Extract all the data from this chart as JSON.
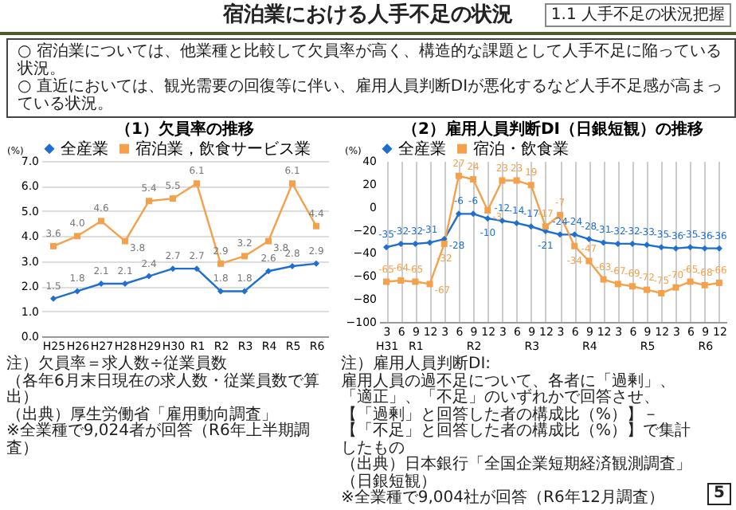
{
  "chart_data": [
    {
      "type": "other",
      "title": "宿泊業における人手不足の状況",
      "annotations": [
        "1.1 人手不足の状況把握",
        "○ 宿泊業については、他業種と比較して欠員率が高く、構造的な課題として人手不足に陥っている状況。",
        "○ 直近においては、観光需要の回復等に伴い、雇用人員判断DIが悪化するなど人手不足感が高まっている状況。",
        "5"
      ]
    },
    {
      "type": "line",
      "title": "（1）欠員率の推移",
      "ylabel": "(%)",
      "categories": [
        "H25",
        "H26",
        "H27",
        "H28",
        "H29",
        "H30",
        "R1",
        "R2",
        "R3",
        "R4",
        "R5",
        "R6"
      ],
      "series": [
        {
          "name": "全産業",
          "color": "#1f6fd0",
          "marker": "diamond",
          "values": [
            1.5,
            1.8,
            2.1,
            2.1,
            2.4,
            2.7,
            2.7,
            1.8,
            1.8,
            2.6,
            2.8,
            2.9
          ],
          "value_labels": [
            "1.5",
            "1.8",
            "2.1",
            "2.1",
            "2.4",
            "2.7",
            "2.7",
            "1.8",
            "1.8",
            "2.6",
            "2.8",
            "2.9"
          ]
        },
        {
          "name": "宿泊業，飲食サービス業",
          "color": "#f5a04a",
          "marker": "square",
          "values": [
            3.6,
            4.0,
            4.6,
            3.8,
            5.4,
            5.5,
            6.1,
            2.9,
            3.2,
            3.8,
            6.1,
            4.4
          ],
          "value_labels": [
            "3.6",
            "4.0",
            "4.6",
            "3.8",
            "5.4",
            "5.5",
            "6.1",
            "2.9",
            "3.2",
            "3.8",
            "6.1",
            "4.4"
          ]
        }
      ],
      "ylim": [
        0,
        7
      ],
      "yticks": [
        {
          "value": 0,
          "label": "0.0"
        },
        {
          "value": 1,
          "label": "1.0"
        },
        {
          "value": 2,
          "label": "2.0"
        },
        {
          "value": 3,
          "label": "3.0"
        },
        {
          "value": 4,
          "label": "4.0"
        },
        {
          "value": 5,
          "label": "5.0"
        },
        {
          "value": 6,
          "label": "6.0"
        },
        {
          "value": 7,
          "label": "7.0"
        }
      ],
      "grid": "y",
      "legend": "top",
      "annotations": [
        "注）欠員率＝求人数÷従業員数",
        "（各年6月末日現在の求人数・従業員数で算出）",
        "（出典）厚生労働省「雇用動向調査」",
        "※全業種で9,024者が回答（R6年上半期調査）"
      ]
    },
    {
      "type": "line",
      "title": "（2）雇用人員判断DI（日銀短観）の推移",
      "ylabel": "(%)",
      "categories": [
        "3",
        "6",
        "9",
        "12",
        "3",
        "6",
        "9",
        "12",
        "3",
        "6",
        "9",
        "12",
        "3",
        "6",
        "9",
        "12",
        "3",
        "6",
        "9",
        "12",
        "3",
        "6",
        "9",
        "12"
      ],
      "series": [
        {
          "name": "全産業",
          "color": "#1f6fd0",
          "marker": "diamond",
          "values": [
            -35,
            -32,
            -32,
            -31,
            -28,
            -6,
            -6,
            -10,
            -12,
            -14,
            -17,
            -21,
            -24,
            -24,
            -28,
            -31,
            -32,
            -32,
            -33,
            -35,
            -36,
            -35,
            -36,
            -36
          ]
        },
        {
          "name": "宿泊・飲食業",
          "color": "#f5a04a",
          "marker": "square",
          "values": [
            -65,
            -64,
            -65,
            -67,
            -32,
            27,
            24,
            -3,
            23,
            23,
            19,
            -17,
            -7,
            -34,
            -47,
            -63,
            -67,
            -69,
            -72,
            -75,
            -70,
            -65,
            -68,
            -66
          ]
        }
      ],
      "data_labels": true,
      "ylim": [
        -100,
        40
      ],
      "yticks": [
        40,
        20,
        0,
        -20,
        -40,
        -60,
        -80,
        -100
      ],
      "grid": "x",
      "legend": "top",
      "annotations": [
        "H31",
        "R1",
        "R2",
        "R3",
        "R4",
        "R5",
        "R6",
        "注）雇用人員判断DI:",
        "雇用人員の過不足について、各者に「過剰」、「適正」、「不足」のいずれかで回答させ、",
        "【「過剰」と回答した者の構成比（%）】－【「不足」と回答した者の構成比（%）】で集計したもの",
        "（出典）日本銀行「全国企業短期経済観測調査」（日銀短観）",
        "※全業種で9,004社が回答（R6年12月調査）"
      ]
    }
  ]
}
